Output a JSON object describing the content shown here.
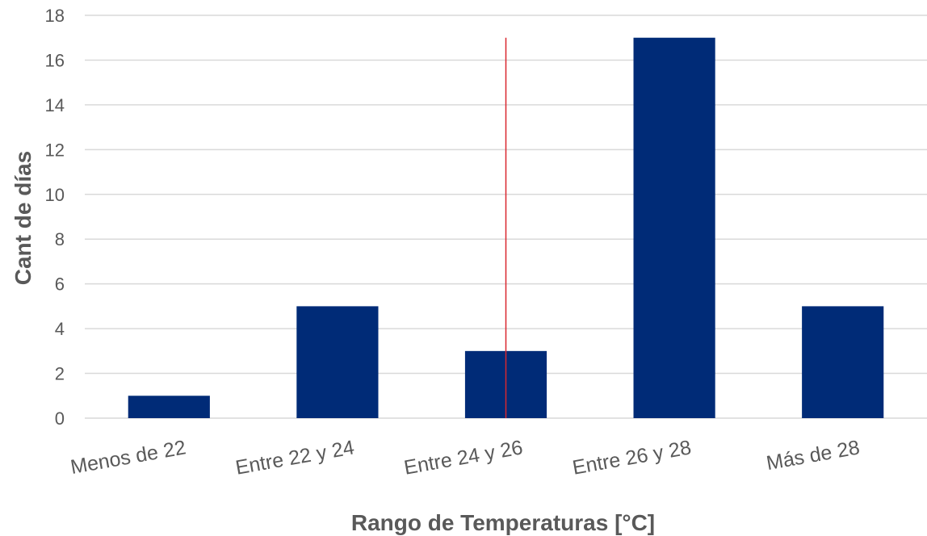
{
  "chart_data": {
    "type": "bar",
    "title": "",
    "xlabel": "Rango de Temperaturas [°C]",
    "ylabel": "Cant de días",
    "categories": [
      "Menos de 22",
      "Entre 22 y 24",
      "Entre 24 y 26",
      "Entre 26 y 28",
      "Más de 28"
    ],
    "values": [
      1,
      5,
      3,
      17,
      5
    ],
    "ylim": [
      0,
      18
    ],
    "yticks": [
      0,
      2,
      4,
      6,
      8,
      10,
      12,
      14,
      16,
      18
    ],
    "grid": "horizontal",
    "legend": "none",
    "reference_line": {
      "x_category": "Entre 24 y 26",
      "y_top": 17
    },
    "colors": {
      "bar": "#002B77",
      "reference_line": "#D9262E",
      "grid": "#D9D9D9",
      "text": "#595959"
    }
  }
}
